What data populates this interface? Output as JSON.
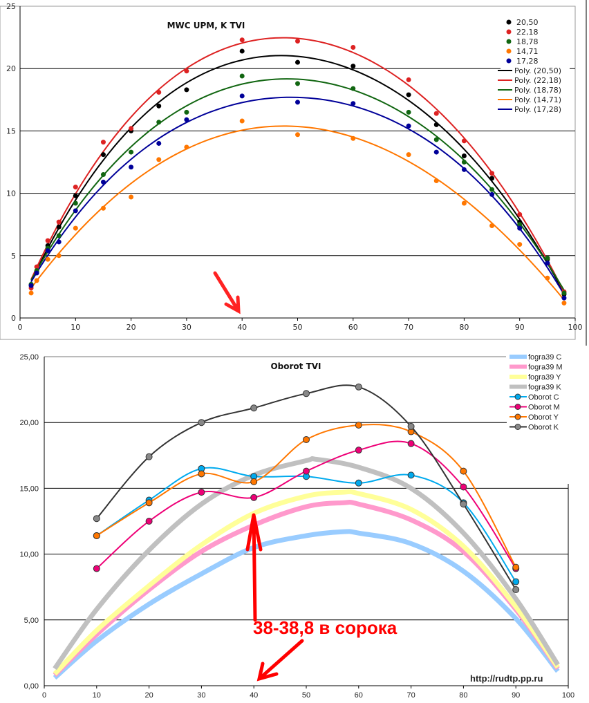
{
  "chart_data": [
    {
      "type": "scatter",
      "title": "MWC UPM, K TVI",
      "xlabel": "",
      "ylabel": "",
      "xlim": [
        0,
        100
      ],
      "ylim": [
        0,
        25
      ],
      "xticks": [
        "0",
        "10",
        "20",
        "30",
        "40",
        "50",
        "60",
        "70",
        "80",
        "90",
        "100"
      ],
      "yticks": [
        "0",
        "5",
        "10",
        "15",
        "20",
        "25"
      ],
      "grid": true,
      "legend_position": "top-right",
      "x": [
        2,
        3,
        5,
        7,
        10,
        15,
        20,
        25,
        30,
        40,
        50,
        60,
        70,
        75,
        80,
        85,
        90,
        95,
        98
      ],
      "series": [
        {
          "name": "20,50",
          "trend": "Poly. (20,50)",
          "color": "#000000",
          "values": [
            2.6,
            3.7,
            5.8,
            7.3,
            9.8,
            13.1,
            15.0,
            17.0,
            18.3,
            21.4,
            20.5,
            20.2,
            17.9,
            15.5,
            13.0,
            11.2,
            7.7,
            4.7,
            1.9
          ]
        },
        {
          "name": "22,18",
          "trend": "Poly. (22,18)",
          "color": "#dd2222",
          "values": [
            2.4,
            4.1,
            6.2,
            7.7,
            10.5,
            14.1,
            15.2,
            18.1,
            19.8,
            22.3,
            22.2,
            21.7,
            19.1,
            16.4,
            14.2,
            11.6,
            8.3,
            4.8,
            2.1
          ]
        },
        {
          "name": "18,78",
          "trend": "Poly. (18,78)",
          "color": "#116611",
          "values": [
            2.7,
            3.8,
            5.6,
            6.6,
            9.2,
            11.5,
            13.3,
            15.7,
            16.5,
            19.4,
            18.8,
            18.4,
            16.5,
            14.3,
            12.5,
            10.3,
            7.5,
            4.8,
            2.0
          ]
        },
        {
          "name": "14,71",
          "trend": "Poly. (14,71)",
          "color": "#ff7700",
          "values": [
            2.0,
            3.0,
            4.7,
            5.0,
            7.2,
            8.8,
            9.7,
            12.7,
            13.7,
            15.8,
            14.7,
            14.4,
            13.1,
            11.0,
            9.2,
            7.4,
            5.9,
            3.2,
            1.2
          ]
        },
        {
          "name": "17,28",
          "trend": "Poly. (17,28)",
          "color": "#000099",
          "values": [
            2.6,
            3.6,
            5.4,
            6.1,
            8.6,
            10.9,
            12.1,
            14.0,
            15.9,
            17.8,
            17.3,
            17.2,
            15.4,
            13.3,
            11.9,
            9.9,
            7.2,
            4.4,
            1.6
          ]
        }
      ]
    },
    {
      "type": "line",
      "title": "Oborot TVI",
      "xlabel": "",
      "ylabel": "",
      "xlim": [
        0,
        100
      ],
      "ylim": [
        0,
        25
      ],
      "xticks": [
        "0",
        "10",
        "20",
        "30",
        "40",
        "50",
        "60",
        "70",
        "80",
        "90",
        "100"
      ],
      "yticks": [
        "0,00",
        "5,00",
        "10,00",
        "15,00",
        "20,00",
        "25,00"
      ],
      "grid": true,
      "legend_position": "top-right",
      "series": [
        {
          "name": "fogra39 C",
          "color": "#99ccff",
          "thick": true,
          "x": [
            2,
            10,
            20,
            30,
            40,
            50,
            57,
            60,
            70,
            80,
            90,
            98
          ],
          "values": [
            0.6,
            3.4,
            6.2,
            8.5,
            10.5,
            11.4,
            11.7,
            11.6,
            10.8,
            8.7,
            5.1,
            1.1
          ]
        },
        {
          "name": "fogra39 M",
          "color": "#ff99cc",
          "thick": true,
          "x": [
            2,
            10,
            20,
            30,
            40,
            50,
            57,
            60,
            70,
            80,
            90,
            98
          ],
          "values": [
            0.8,
            3.9,
            7.3,
            10.2,
            12.2,
            13.6,
            13.9,
            13.8,
            12.6,
            10.2,
            5.8,
            1.3
          ]
        },
        {
          "name": "fogra39 Y",
          "color": "#ffff99",
          "thick": true,
          "x": [
            2,
            10,
            20,
            30,
            40,
            50,
            57,
            60,
            70,
            80,
            90,
            98
          ],
          "values": [
            0.9,
            4.2,
            7.6,
            10.7,
            13.1,
            14.4,
            14.7,
            14.6,
            13.4,
            10.6,
            6.0,
            1.4
          ]
        },
        {
          "name": "fogra39 K",
          "color": "#c0c0c0",
          "thick": true,
          "x": [
            2,
            10,
            20,
            30,
            40,
            50,
            52,
            60,
            70,
            80,
            90,
            98
          ],
          "values": [
            1.3,
            5.8,
            10.3,
            13.8,
            16.0,
            17.1,
            17.2,
            16.6,
            15.0,
            11.6,
            6.6,
            1.6
          ]
        },
        {
          "name": "Oborot C",
          "color": "#00aaee",
          "thick": false,
          "x": [
            10,
            20,
            30,
            40,
            50,
            60,
            70,
            80,
            90
          ],
          "values": [
            11.4,
            14.1,
            16.5,
            15.9,
            15.9,
            15.4,
            16.0,
            13.9,
            7.9
          ]
        },
        {
          "name": "Oborot M",
          "color": "#ee0077",
          "thick": false,
          "x": [
            10,
            20,
            30,
            40,
            50,
            60,
            70,
            80,
            90
          ],
          "values": [
            8.9,
            12.5,
            14.7,
            14.3,
            16.3,
            17.9,
            18.4,
            15.1,
            8.9
          ]
        },
        {
          "name": "Oborot Y",
          "color": "#ff7700",
          "thick": false,
          "x": [
            10,
            20,
            30,
            40,
            50,
            60,
            70,
            80,
            90
          ],
          "values": [
            11.4,
            13.9,
            16.1,
            15.5,
            18.7,
            19.8,
            19.3,
            16.3,
            9.0
          ]
        },
        {
          "name": "Oborot K",
          "color": "#333333",
          "thick": false,
          "x": [
            10,
            20,
            30,
            40,
            50,
            60,
            70,
            80,
            90
          ],
          "values": [
            12.7,
            17.4,
            20.0,
            21.1,
            22.2,
            22.7,
            19.7,
            13.8,
            7.3
          ]
        }
      ],
      "annotations": [
        "38-38,8 в сорока",
        "http://rudtp.pp.ru"
      ]
    }
  ]
}
